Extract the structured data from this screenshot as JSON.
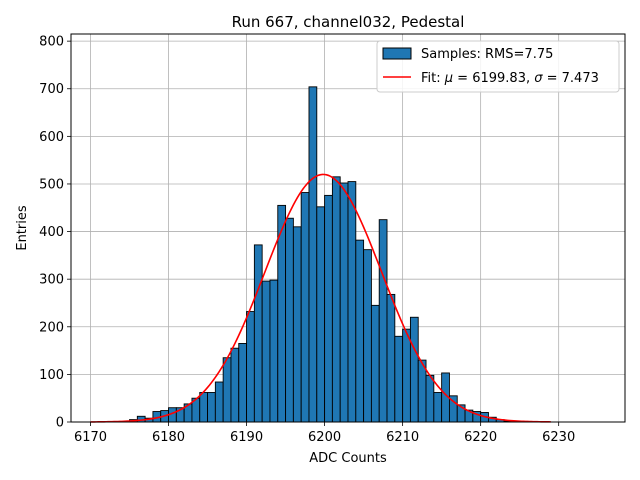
{
  "chart_data": {
    "type": "bar",
    "title": "Run 667, channel032, Pedestal",
    "xlabel": "ADC Counts",
    "ylabel": "Entries",
    "xlim": [
      6167.5,
      6238.5
    ],
    "ylim": [
      0,
      815
    ],
    "grid": true,
    "legend_position": "top-right",
    "x_ticks": [
      6170,
      6180,
      6190,
      6200,
      6210,
      6220,
      6230
    ],
    "y_ticks": [
      0,
      100,
      200,
      300,
      400,
      500,
      600,
      700,
      800
    ],
    "bin_width": 1,
    "bin_start": 6170,
    "histogram_values": [
      0,
      0,
      0,
      0,
      0,
      5,
      12,
      8,
      22,
      24,
      30,
      30,
      38,
      50,
      62,
      62,
      84,
      135,
      155,
      165,
      232,
      372,
      296,
      298,
      455,
      428,
      410,
      482,
      704,
      452,
      476,
      515,
      502,
      505,
      382,
      362,
      245,
      425,
      268,
      180,
      195,
      220,
      130,
      98,
      62,
      103,
      55,
      36,
      25,
      22,
      20,
      10,
      5,
      2,
      1,
      1,
      0,
      0,
      0
    ],
    "series": [
      {
        "name": "Samples: RMS=7.75",
        "type": "histogram",
        "color": "#1f77b4",
        "edge_color": "#000000"
      },
      {
        "name": "Fit: μ = 6199.83, σ = 7.473",
        "type": "line",
        "color": "#ff0000",
        "mu": 6199.83,
        "sigma": 7.473,
        "peak": 520,
        "x_range": [
          6170,
          6229
        ]
      }
    ],
    "legend": {
      "samples_label": "Samples: RMS=7.75",
      "fit_prefix": "Fit: ",
      "fit_mu_symbol": "μ",
      "fit_mu_text": " = 6199.83, ",
      "fit_sigma_symbol": "σ",
      "fit_sigma_text": " = 7.473"
    }
  }
}
